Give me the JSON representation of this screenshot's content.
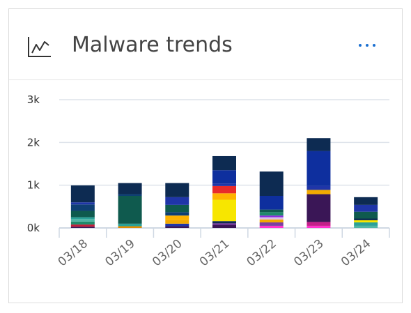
{
  "widget": {
    "title": "Malware trends",
    "icon": "line-chart-icon",
    "menu_icon": "more-horizontal-icon"
  },
  "chart_data": {
    "type": "bar",
    "stacked": true,
    "categories": [
      "03/18",
      "03/19",
      "03/20",
      "03/21",
      "03/22",
      "03/23",
      "03/24"
    ],
    "y_ticks": [
      "3k",
      "2k",
      "1k",
      "0k"
    ],
    "ylim": [
      0,
      3000
    ],
    "grid": true,
    "legend": "none",
    "stacks": [
      [
        {
          "v": 30,
          "c": "#3a1656"
        },
        {
          "v": 50,
          "c": "#c41e3a"
        },
        {
          "v": 70,
          "c": "#1f8a6b"
        },
        {
          "v": 60,
          "c": "#4fb5a5"
        },
        {
          "v": 40,
          "c": "#2aa198"
        },
        {
          "v": 150,
          "c": "#0f5a4e"
        },
        {
          "v": 150,
          "c": "#0e3f73"
        },
        {
          "v": 50,
          "c": "#1f35a8"
        },
        {
          "v": 395,
          "c": "#0d2b52"
        }
      ],
      [
        {
          "v": 40,
          "c": "#e08a00"
        },
        {
          "v": 60,
          "c": "#2aa198"
        },
        {
          "v": 650,
          "c": "#0f5a4e"
        },
        {
          "v": 40,
          "c": "#0e3f73"
        },
        {
          "v": 260,
          "c": "#0d2b52"
        }
      ],
      [
        {
          "v": 40,
          "c": "#3a1656"
        },
        {
          "v": 60,
          "c": "#1f35a8"
        },
        {
          "v": 90,
          "c": "#f2a900"
        },
        {
          "v": 100,
          "c": "#ffb300"
        },
        {
          "v": 80,
          "c": "#0e3f73"
        },
        {
          "v": 170,
          "c": "#0f5a4e"
        },
        {
          "v": 180,
          "c": "#1f35a8"
        },
        {
          "v": 330,
          "c": "#0d2b52"
        }
      ],
      [
        {
          "v": 70,
          "c": "#3a1656"
        },
        {
          "v": 40,
          "c": "#6a2c91"
        },
        {
          "v": 50,
          "c": "#0d2b52"
        },
        {
          "v": 500,
          "c": "#f7e600"
        },
        {
          "v": 150,
          "c": "#ffb300"
        },
        {
          "v": 170,
          "c": "#e82a2a"
        },
        {
          "v": 60,
          "c": "#1f35a8"
        },
        {
          "v": 310,
          "c": "#0e2f9e"
        },
        {
          "v": 330,
          "c": "#0d2b52"
        }
      ],
      [
        {
          "v": 50,
          "c": "#ff33cc"
        },
        {
          "v": 80,
          "c": "#7b3fa0"
        },
        {
          "v": 70,
          "c": "#f2a900"
        },
        {
          "v": 50,
          "c": "#d8c0e8"
        },
        {
          "v": 40,
          "c": "#8a2be2"
        },
        {
          "v": 80,
          "c": "#1f8a6b"
        },
        {
          "v": 60,
          "c": "#0f5a4e"
        },
        {
          "v": 320,
          "c": "#0e2f9e"
        },
        {
          "v": 570,
          "c": "#0d2b52"
        }
      ],
      [
        {
          "v": 50,
          "c": "#ff33cc"
        },
        {
          "v": 90,
          "c": "#c41e8a"
        },
        {
          "v": 650,
          "c": "#3a1656"
        },
        {
          "v": 100,
          "c": "#f2a900"
        },
        {
          "v": 90,
          "c": "#1f35a8"
        },
        {
          "v": 820,
          "c": "#0e2f9e"
        },
        {
          "v": 300,
          "c": "#0d2b52"
        }
      ],
      [
        {
          "v": 50,
          "c": "#4fb5a5"
        },
        {
          "v": 80,
          "c": "#2aa198"
        },
        {
          "v": 50,
          "c": "#f7e600"
        },
        {
          "v": 40,
          "c": "#0d2b52"
        },
        {
          "v": 160,
          "c": "#0f5a4e"
        },
        {
          "v": 160,
          "c": "#1f35a8"
        },
        {
          "v": 180,
          "c": "#0d2b52"
        }
      ]
    ]
  }
}
